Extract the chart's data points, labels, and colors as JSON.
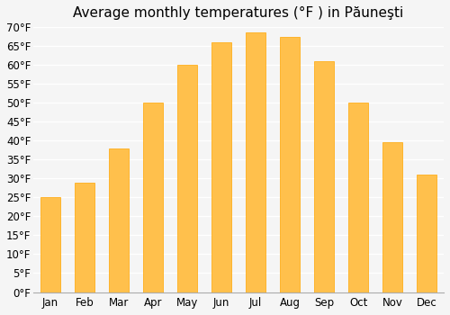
{
  "title": "Average monthly temperatures (°F ) in Păuneşti",
  "months": [
    "Jan",
    "Feb",
    "Mar",
    "Apr",
    "May",
    "Jun",
    "Jul",
    "Aug",
    "Sep",
    "Oct",
    "Nov",
    "Dec"
  ],
  "values": [
    25,
    29,
    38,
    50,
    60,
    66,
    68.5,
    67.5,
    61,
    50,
    39.5,
    31
  ],
  "bar_color": "#FFA500",
  "bar_edge_color": "#FFA500",
  "ylim": [
    0,
    70
  ],
  "yticks": [
    0,
    5,
    10,
    15,
    20,
    25,
    30,
    35,
    40,
    45,
    50,
    55,
    60,
    65,
    70
  ],
  "ytick_labels": [
    "0°F",
    "5°F",
    "10°F",
    "15°F",
    "20°F",
    "25°F",
    "30°F",
    "35°F",
    "40°F",
    "45°F",
    "50°F",
    "55°F",
    "60°F",
    "65°F",
    "70°F"
  ],
  "background_color": "#f5f5f5",
  "grid_color": "#ffffff",
  "title_fontsize": 11,
  "tick_fontsize": 8.5,
  "bar_width": 0.6
}
